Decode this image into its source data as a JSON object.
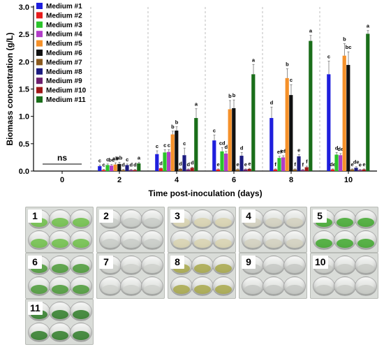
{
  "chart_data": {
    "type": "bar",
    "xlabel": "Time post-inoculation (days)",
    "ylabel": "Biomass concentration (g/L)",
    "ylim": [
      0,
      3.0
    ],
    "yticks": [
      "0.0",
      "0.5",
      "1.0",
      "1.5",
      "2.0",
      "2.5",
      "3.0"
    ],
    "categories": [
      "0",
      "2",
      "4",
      "6",
      "8",
      "10"
    ],
    "legend_position": "top-left",
    "ns_label": "ns",
    "series": [
      {
        "name": "Medium #1",
        "color": "#1f1fdd",
        "values": [
          0,
          0.09,
          0.31,
          0.56,
          0.97,
          1.77
        ]
      },
      {
        "name": "Medium #2",
        "color": "#e81c1c",
        "values": [
          0,
          0.02,
          0.05,
          0.03,
          0.03,
          0.03
        ]
      },
      {
        "name": "Medium #3",
        "color": "#2bc42b",
        "values": [
          0,
          0.11,
          0.34,
          0.36,
          0.24,
          0.3
        ]
      },
      {
        "name": "Medium #4",
        "color": "#b23cc8",
        "values": [
          0,
          0.1,
          0.35,
          0.32,
          0.25,
          0.29
        ]
      },
      {
        "name": "Medium #5",
        "color": "#f5912a",
        "values": [
          0,
          0.12,
          0.67,
          1.13,
          1.7,
          2.11
        ]
      },
      {
        "name": "Medium #6",
        "color": "#111111",
        "values": [
          0,
          0.13,
          0.74,
          1.15,
          1.39,
          1.94
        ]
      },
      {
        "name": "Medium #7",
        "color": "#8a5a1e",
        "values": [
          0,
          0.02,
          0.04,
          0.03,
          0.03,
          0.03
        ]
      },
      {
        "name": "Medium #8",
        "color": "#1b1b80",
        "values": [
          0,
          0.11,
          0.29,
          0.28,
          0.27,
          0.06
        ]
      },
      {
        "name": "Medium #9",
        "color": "#6e1f6e",
        "values": [
          0,
          0.02,
          0.03,
          0.03,
          0.02,
          0.02
        ]
      },
      {
        "name": "Medium #10",
        "color": "#a01818",
        "values": [
          0,
          0.02,
          0.06,
          0.04,
          0.07,
          0.03
        ]
      },
      {
        "name": "Medium #11",
        "color": "#1a6e1a",
        "values": [
          0,
          0.14,
          0.97,
          1.77,
          2.38,
          2.51
        ]
      }
    ],
    "errors": [
      [
        0,
        0.02,
        0.06,
        0.1,
        0.2,
        0.24
      ],
      [
        0,
        0.01,
        0.01,
        0.01,
        0.01,
        0.01
      ],
      [
        0,
        0.02,
        0.05,
        0.07,
        0.03,
        0.04
      ],
      [
        0,
        0.02,
        0.04,
        0.04,
        0.03,
        0.03
      ],
      [
        0,
        0.03,
        0.06,
        0.16,
        0.17,
        0.22
      ],
      [
        0,
        0.03,
        0.07,
        0.15,
        0.19,
        0.24
      ],
      [
        0,
        0.01,
        0.01,
        0.01,
        0.01,
        0.01
      ],
      [
        0,
        0.02,
        0.13,
        0.06,
        0.03,
        0.02
      ],
      [
        0,
        0.01,
        0.01,
        0.01,
        0.01,
        0.01
      ],
      [
        0,
        0.01,
        0.01,
        0.01,
        0.02,
        0.01
      ],
      [
        0,
        0.02,
        0.17,
        0.18,
        0.1,
        0.06
      ]
    ],
    "significance_letters": [
      [
        "",
        "c",
        "c",
        "c",
        "d",
        "c"
      ],
      [
        "",
        "c",
        "d",
        "e",
        "f",
        "de"
      ],
      [
        "",
        "c",
        "c",
        "cd",
        "ef",
        "d"
      ],
      [
        "",
        "bc",
        "c",
        "d",
        "ef",
        "de"
      ],
      [
        "",
        "ab",
        "b",
        "b",
        "b",
        "b"
      ],
      [
        "",
        "ab",
        "b",
        "b",
        "c",
        "bc"
      ],
      [
        "",
        "d",
        "d",
        "e",
        "f",
        "e"
      ],
      [
        "",
        "c",
        "c",
        "d",
        "e",
        "de"
      ],
      [
        "",
        "d",
        "d",
        "e",
        "f",
        "e"
      ],
      [
        "",
        "d",
        "d",
        "e",
        "f",
        "e"
      ],
      [
        "",
        "a",
        "a",
        "a",
        "a",
        "a"
      ]
    ]
  },
  "photos": [
    {
      "label": "1",
      "tint": "#6dc047"
    },
    {
      "label": "2",
      "tint": "#c9ccc8"
    },
    {
      "label": "3",
      "tint": "#d9d4b0"
    },
    {
      "label": "4",
      "tint": "#d4d1c0"
    },
    {
      "label": "5",
      "tint": "#3fa82d"
    },
    {
      "label": "6",
      "tint": "#4a9a36"
    },
    {
      "label": "7",
      "tint": "#cfd1cd"
    },
    {
      "label": "8",
      "tint": "#a8a84a"
    },
    {
      "label": "9",
      "tint": "#c6c8c4"
    },
    {
      "label": "10",
      "tint": "#c9cbc7"
    },
    {
      "label": "11",
      "tint": "#2f7d28"
    }
  ]
}
